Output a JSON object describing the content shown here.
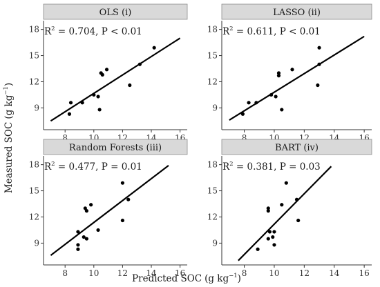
{
  "figure": {
    "xlabel_main": "Predicted SOC",
    "xlabel_unit": "(g kg",
    "xlabel_exp": "−1",
    "xlabel_close": ")",
    "ylabel_main": "Measured SOC",
    "ylabel_unit": "(g kg",
    "ylabel_exp": "−1",
    "ylabel_close": ")"
  },
  "colors": {
    "strip_fill": "#d9d9d9",
    "strip_stroke": "#8c8c8c",
    "point": "#000000",
    "line": "#000000"
  },
  "chart_data": [
    {
      "type": "scatter",
      "title": "OLS (i)",
      "annotation": {
        "r2_label": "R",
        "r2_exp": "2",
        "rest": " = 0.704, P < 0.01"
      },
      "xlim": [
        6.5,
        16.5
      ],
      "ylim": [
        6.5,
        19.0
      ],
      "xticks": [
        8,
        10,
        12,
        14,
        16
      ],
      "yticks": [
        9,
        12,
        15,
        18
      ],
      "points": [
        {
          "x": 8.3,
          "y": 8.3
        },
        {
          "x": 8.4,
          "y": 9.6
        },
        {
          "x": 9.2,
          "y": 9.6
        },
        {
          "x": 10.0,
          "y": 10.5
        },
        {
          "x": 10.3,
          "y": 10.3
        },
        {
          "x": 10.4,
          "y": 8.8
        },
        {
          "x": 10.5,
          "y": 13.0
        },
        {
          "x": 10.6,
          "y": 12.8
        },
        {
          "x": 10.9,
          "y": 13.4
        },
        {
          "x": 12.5,
          "y": 11.6
        },
        {
          "x": 13.2,
          "y": 14.0
        },
        {
          "x": 14.2,
          "y": 15.9
        }
      ],
      "fit": {
        "x": [
          7.0,
          16.0
        ],
        "y": [
          7.5,
          17.0
        ]
      }
    },
    {
      "type": "scatter",
      "title": "LASSO (ii)",
      "annotation": {
        "r2_label": "R",
        "r2_exp": "2",
        "rest": " = 0.611, P < 0.01"
      },
      "xlim": [
        6.5,
        16.5
      ],
      "ylim": [
        6.5,
        19.0
      ],
      "xticks": [
        8,
        10,
        12,
        14,
        16
      ],
      "yticks": [
        9,
        12,
        15,
        18
      ],
      "points": [
        {
          "x": 7.9,
          "y": 8.3
        },
        {
          "x": 8.3,
          "y": 9.6
        },
        {
          "x": 8.8,
          "y": 9.6
        },
        {
          "x": 9.8,
          "y": 10.5
        },
        {
          "x": 10.1,
          "y": 10.3
        },
        {
          "x": 10.3,
          "y": 13.0
        },
        {
          "x": 10.3,
          "y": 12.7
        },
        {
          "x": 10.5,
          "y": 8.8
        },
        {
          "x": 11.2,
          "y": 13.4
        },
        {
          "x": 12.9,
          "y": 11.6
        },
        {
          "x": 13.0,
          "y": 15.9
        },
        {
          "x": 13.0,
          "y": 14.0
        }
      ],
      "fit": {
        "x": [
          7.0,
          16.0
        ],
        "y": [
          7.6,
          17.2
        ]
      }
    },
    {
      "type": "scatter",
      "title": "Random Forests (iii)",
      "annotation": {
        "r2_label": "R",
        "r2_exp": "2",
        "rest": " = 0.477, P = 0.01"
      },
      "xlim": [
        6.5,
        16.5
      ],
      "ylim": [
        6.5,
        19.0
      ],
      "xticks": [
        8,
        10,
        12,
        14,
        16
      ],
      "yticks": [
        9,
        12,
        15,
        18
      ],
      "points": [
        {
          "x": 8.9,
          "y": 8.3
        },
        {
          "x": 8.9,
          "y": 10.3
        },
        {
          "x": 8.9,
          "y": 8.8
        },
        {
          "x": 9.3,
          "y": 9.7
        },
        {
          "x": 9.5,
          "y": 9.5
        },
        {
          "x": 9.4,
          "y": 13.0
        },
        {
          "x": 9.5,
          "y": 12.7
        },
        {
          "x": 9.8,
          "y": 13.4
        },
        {
          "x": 10.3,
          "y": 10.5
        },
        {
          "x": 12.0,
          "y": 11.6
        },
        {
          "x": 12.0,
          "y": 15.9
        },
        {
          "x": 12.4,
          "y": 14.0
        }
      ],
      "fit": {
        "x": [
          7.0,
          15.2
        ],
        "y": [
          7.6,
          17.9
        ]
      }
    },
    {
      "type": "scatter",
      "title": "BART (iv)",
      "annotation": {
        "r2_label": "R",
        "r2_exp": "2",
        "rest": " = 0.381, P = 0.03"
      },
      "xlim": [
        6.5,
        16.5
      ],
      "ylim": [
        6.5,
        19.0
      ],
      "xticks": [
        8,
        10,
        12,
        14,
        16
      ],
      "yticks": [
        9,
        12,
        15,
        18
      ],
      "points": [
        {
          "x": 8.9,
          "y": 8.3
        },
        {
          "x": 9.6,
          "y": 9.5
        },
        {
          "x": 9.6,
          "y": 13.0
        },
        {
          "x": 9.6,
          "y": 12.7
        },
        {
          "x": 9.7,
          "y": 10.3
        },
        {
          "x": 9.9,
          "y": 9.7
        },
        {
          "x": 10.0,
          "y": 10.3
        },
        {
          "x": 10.0,
          "y": 8.8
        },
        {
          "x": 10.5,
          "y": 13.4
        },
        {
          "x": 10.8,
          "y": 15.9
        },
        {
          "x": 11.6,
          "y": 11.6
        },
        {
          "x": 11.5,
          "y": 14.0
        }
      ],
      "fit": {
        "x": [
          7.6,
          13.8
        ],
        "y": [
          7.0,
          17.8
        ]
      }
    }
  ]
}
